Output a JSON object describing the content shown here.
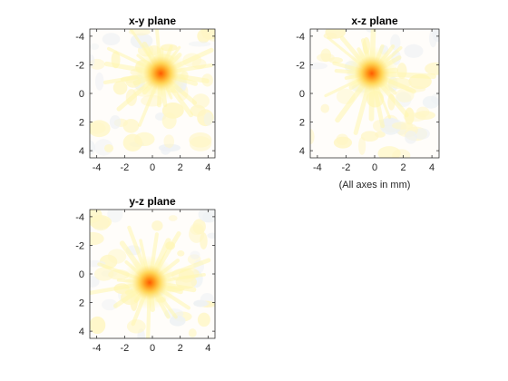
{
  "chart_data": [
    {
      "type": "heatmap",
      "title": "x-y plane",
      "xlim": [
        -4.5,
        4.5
      ],
      "ylim": [
        -4.5,
        4.5
      ],
      "y_reversed": true,
      "xticks": [
        -4,
        -2,
        0,
        2,
        4
      ],
      "yticks": [
        -4,
        -2,
        0,
        2,
        4
      ],
      "peak": {
        "x": 0.6,
        "y": -1.4
      },
      "note": "",
      "colormap": [
        "#fffdfa",
        "#fff7b0",
        "#ffd24d",
        "#ff9a1a",
        "#ff5a00"
      ]
    },
    {
      "type": "heatmap",
      "title": "x-z plane",
      "xlim": [
        -4.5,
        4.5
      ],
      "ylim": [
        -4.5,
        4.5
      ],
      "y_reversed": true,
      "xticks": [
        -4,
        -2,
        0,
        2,
        4
      ],
      "yticks": [
        -4,
        -2,
        0,
        2,
        4
      ],
      "peak": {
        "x": -0.2,
        "y": -1.4
      },
      "note": "(All axes in mm)",
      "colormap": [
        "#fffdfa",
        "#fff7b0",
        "#ffd24d",
        "#ff9a1a",
        "#ff5a00"
      ]
    },
    {
      "type": "heatmap",
      "title": "y-z plane",
      "xlim": [
        -4.5,
        4.5
      ],
      "ylim": [
        -4.5,
        4.5
      ],
      "y_reversed": true,
      "xticks": [
        -4,
        -2,
        0,
        2,
        4
      ],
      "yticks": [
        -4,
        -2,
        0,
        2,
        4
      ],
      "peak": {
        "x": -0.2,
        "y": 0.6
      },
      "note": "",
      "colormap": [
        "#fffdfa",
        "#fff7b0",
        "#ffd24d",
        "#ff9a1a",
        "#ff5a00"
      ]
    }
  ]
}
